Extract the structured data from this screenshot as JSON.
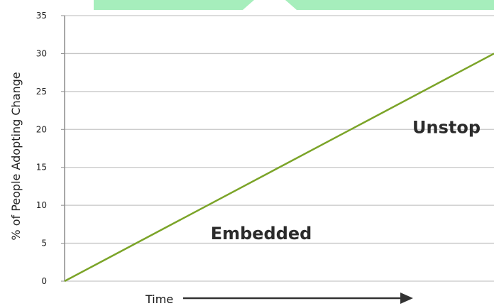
{
  "chart_data": {
    "type": "line",
    "title": "",
    "xlabel": "Time",
    "ylabel": "% of People Adopting Change",
    "ylim": [
      0,
      35
    ],
    "yticks": [
      0,
      5,
      10,
      15,
      20,
      25,
      30,
      35
    ],
    "grid": true,
    "series": [
      {
        "x": [
          0,
          100
        ],
        "values": [
          0,
          30
        ]
      }
    ],
    "annotations": [
      {
        "text": "Embedded",
        "x": 34,
        "y": 5.5
      },
      {
        "text": "Unstop",
        "x": 81,
        "y": 19.5
      }
    ]
  },
  "colors": {
    "line": "#7ba428",
    "grid": "#c6c6c6",
    "axis": "#8c8c8c",
    "top_band": "#a6eebc",
    "arrow": "#333333"
  }
}
